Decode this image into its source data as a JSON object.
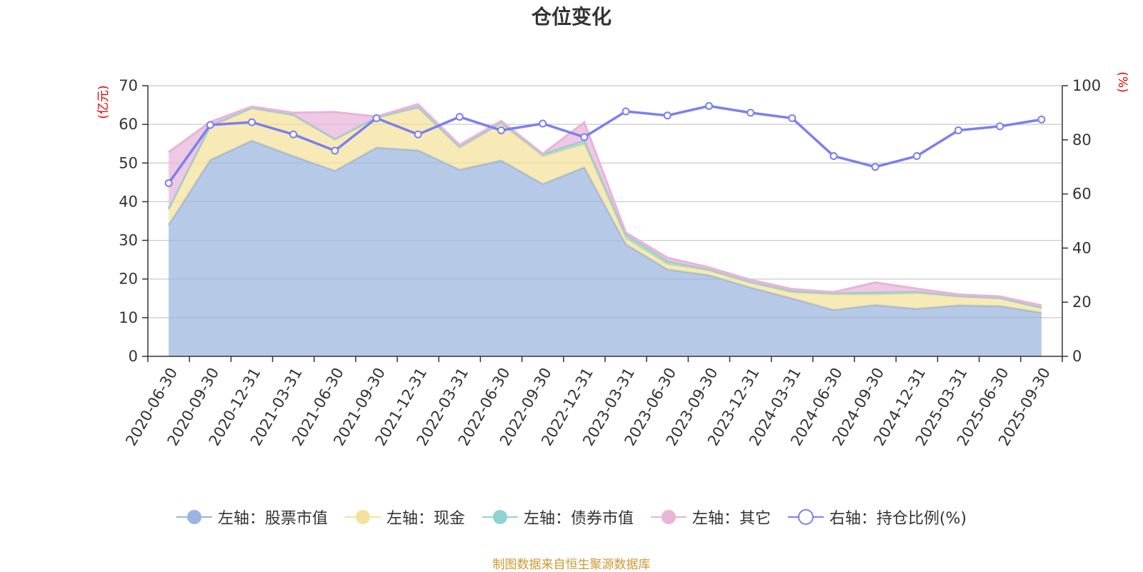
{
  "chart_data": {
    "type": "area",
    "title": "仓位变化",
    "left_axis_unit": "(亿元)",
    "right_axis_unit": "(%)",
    "left_ylim": [
      0,
      70
    ],
    "left_ticks": [
      0,
      10,
      20,
      30,
      40,
      50,
      60,
      70
    ],
    "right_ylim": [
      0,
      100
    ],
    "right_ticks": [
      0,
      20,
      40,
      60,
      80,
      100
    ],
    "grid": true,
    "legend_position": "bottom",
    "x": [
      "2020-06-30",
      "2020-09-30",
      "2020-12-31",
      "2021-03-31",
      "2021-06-30",
      "2021-09-30",
      "2021-12-31",
      "2022-03-31",
      "2022-06-30",
      "2022-09-30",
      "2022-12-31",
      "2023-03-31",
      "2023-06-30",
      "2023-09-30",
      "2023-12-31",
      "2024-03-31",
      "2024-06-30",
      "2024-09-30",
      "2024-12-31",
      "2025-03-31",
      "2025-06-30",
      "2025-09-30"
    ],
    "series": [
      {
        "name": "左轴：股票市值",
        "axis": "left",
        "stack": true,
        "color": "#9ab5df",
        "values": [
          34.0,
          50.8,
          55.8,
          51.8,
          48.0,
          54.0,
          53.3,
          48.3,
          50.7,
          44.6,
          48.9,
          29.0,
          22.5,
          21.0,
          17.8,
          15.0,
          12.0,
          13.3,
          12.3,
          13.2,
          13.0,
          11.3
        ]
      },
      {
        "name": "左轴：现金",
        "axis": "left",
        "stack": true,
        "color": "#f5e29a",
        "values": [
          4.0,
          8.6,
          8.3,
          10.5,
          8.0,
          7.6,
          11.0,
          5.6,
          9.5,
          7.1,
          6.0,
          1.5,
          1.3,
          1.2,
          1.2,
          1.5,
          4.0,
          2.7,
          4.0,
          2.2,
          2.0,
          1.2
        ]
      },
      {
        "name": "左轴：债券市值",
        "axis": "left",
        "stack": true,
        "color": "#8fd3d0",
        "values": [
          0.2,
          0.2,
          0.2,
          0.2,
          0.2,
          0.2,
          0.2,
          0.3,
          0.2,
          0.6,
          0.9,
          1.0,
          0.8,
          0.2,
          0.2,
          0.4,
          0.3,
          0.5,
          0.4,
          0.2,
          0.1,
          0.1
        ]
      },
      {
        "name": "左轴：其它",
        "axis": "left",
        "stack": true,
        "color": "#e8b4d8",
        "values": [
          14.6,
          1.0,
          0.3,
          0.5,
          7.0,
          0.2,
          0.7,
          0.5,
          0.5,
          0.1,
          4.7,
          0.5,
          0.9,
          0.6,
          0.6,
          0.5,
          0.3,
          2.6,
          0.8,
          0.4,
          0.4,
          0.6
        ]
      },
      {
        "name": "右轴：持仓比例(%)",
        "axis": "right",
        "type": "line",
        "color": "#7b7ff0",
        "values": [
          64.0,
          85.5,
          86.5,
          82.0,
          76.0,
          88.0,
          82.0,
          88.5,
          83.5,
          86.0,
          81.0,
          90.5,
          89.0,
          92.5,
          90.0,
          88.0,
          74.0,
          70.0,
          74.0,
          83.5,
          85.0,
          87.5
        ]
      }
    ]
  },
  "source_note": "制图数据来自恒生聚源数据库"
}
